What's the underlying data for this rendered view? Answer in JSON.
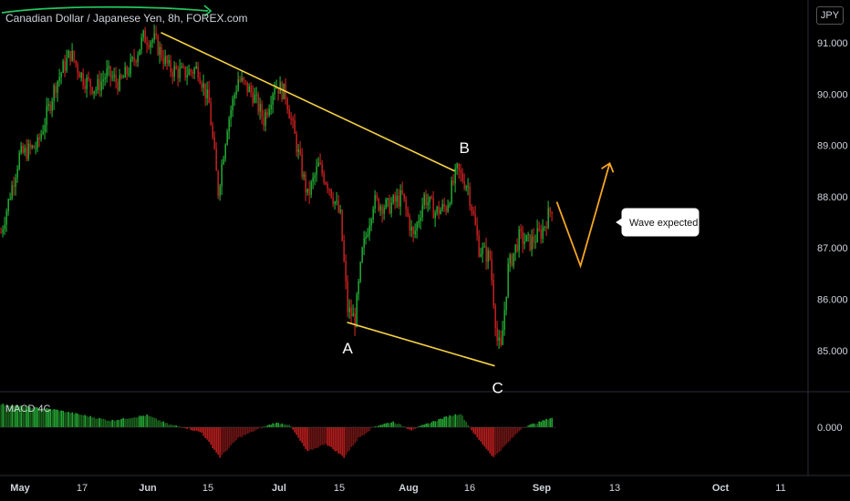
{
  "chart_data": {
    "type": "candlestick",
    "title": "Canadian Dollar / Japanese Yen, 8h, FOREX.com",
    "currency": "JPY",
    "price_axis": {
      "ticks": [
        "91.000",
        "90.000",
        "89.000",
        "88.000",
        "87.000",
        "86.000",
        "85.000"
      ],
      "values": [
        91,
        90,
        89,
        88,
        87,
        86,
        85
      ]
    },
    "time_axis": {
      "ticks": [
        "May",
        "17",
        "Jun",
        "15",
        "Jul",
        "15",
        "Aug",
        "16",
        "Sep",
        "13",
        "Oct",
        "11"
      ],
      "bold": [
        "May",
        "Jun",
        "Jul",
        "Aug",
        "Sep",
        "Oct"
      ]
    },
    "price_path": [
      {
        "i": 0,
        "v": 87.3
      },
      {
        "i": 10,
        "v": 88.8
      },
      {
        "i": 20,
        "v": 89.0
      },
      {
        "i": 30,
        "v": 90.2
      },
      {
        "i": 38,
        "v": 90.8
      },
      {
        "i": 45,
        "v": 90.3
      },
      {
        "i": 52,
        "v": 90.1
      },
      {
        "i": 58,
        "v": 90.4
      },
      {
        "i": 65,
        "v": 90.2
      },
      {
        "i": 72,
        "v": 90.6
      },
      {
        "i": 78,
        "v": 91.1
      },
      {
        "i": 84,
        "v": 91.05
      },
      {
        "i": 92,
        "v": 90.5
      },
      {
        "i": 100,
        "v": 90.4
      },
      {
        "i": 108,
        "v": 90.5
      },
      {
        "i": 114,
        "v": 89.8
      },
      {
        "i": 119,
        "v": 88.1
      },
      {
        "i": 124,
        "v": 89.4
      },
      {
        "i": 130,
        "v": 90.3
      },
      {
        "i": 138,
        "v": 90.0
      },
      {
        "i": 144,
        "v": 89.5
      },
      {
        "i": 150,
        "v": 90.2
      },
      {
        "i": 156,
        "v": 90.0
      },
      {
        "i": 162,
        "v": 89.0
      },
      {
        "i": 168,
        "v": 88.0
      },
      {
        "i": 174,
        "v": 88.6
      },
      {
        "i": 180,
        "v": 88.2
      },
      {
        "i": 186,
        "v": 87.6
      },
      {
        "i": 190,
        "v": 85.8
      },
      {
        "i": 194,
        "v": 85.6
      },
      {
        "i": 198,
        "v": 86.9
      },
      {
        "i": 204,
        "v": 87.9
      },
      {
        "i": 212,
        "v": 87.8
      },
      {
        "i": 220,
        "v": 88.0
      },
      {
        "i": 226,
        "v": 87.2
      },
      {
        "i": 232,
        "v": 88.0
      },
      {
        "i": 238,
        "v": 87.7
      },
      {
        "i": 244,
        "v": 87.8
      },
      {
        "i": 250,
        "v": 88.5
      },
      {
        "i": 256,
        "v": 88.2
      },
      {
        "i": 262,
        "v": 87.0
      },
      {
        "i": 268,
        "v": 86.8
      },
      {
        "i": 272,
        "v": 85.2
      },
      {
        "i": 274,
        "v": 85.0
      },
      {
        "i": 278,
        "v": 86.6
      },
      {
        "i": 284,
        "v": 87.2
      },
      {
        "i": 290,
        "v": 87.1
      },
      {
        "i": 296,
        "v": 87.3
      },
      {
        "i": 302,
        "v": 87.8
      }
    ],
    "annotations": {
      "wave_labels": [
        "A",
        "B",
        "C"
      ],
      "callout": "Wave expected",
      "lines": [
        {
          "from": {
            "i": 88,
            "v": 91.2
          },
          "to": {
            "i": 249,
            "v": 88.5
          }
        },
        {
          "from": {
            "i": 190,
            "v": 85.55
          },
          "to": {
            "i": 271,
            "v": 84.7
          }
        }
      ],
      "projection": [
        {
          "i": 305,
          "v": 87.9
        },
        {
          "i": 318,
          "v": 86.65
        },
        {
          "i": 334,
          "v": 88.65
        }
      ]
    },
    "indicator": {
      "name": "MACD 4C",
      "tick": "0.000",
      "histogram": [
        {
          "i": 0,
          "v": 0.42
        },
        {
          "i": 30,
          "v": 0.32
        },
        {
          "i": 60,
          "v": 0.12
        },
        {
          "i": 80,
          "v": 0.22
        },
        {
          "i": 92,
          "v": 0.05
        },
        {
          "i": 100,
          "v": 0.0
        },
        {
          "i": 110,
          "v": -0.1
        },
        {
          "i": 120,
          "v": -0.55
        },
        {
          "i": 130,
          "v": -0.2
        },
        {
          "i": 140,
          "v": -0.05
        },
        {
          "i": 150,
          "v": 0.08
        },
        {
          "i": 158,
          "v": 0.05
        },
        {
          "i": 168,
          "v": -0.45
        },
        {
          "i": 178,
          "v": -0.3
        },
        {
          "i": 188,
          "v": -0.55
        },
        {
          "i": 196,
          "v": -0.2
        },
        {
          "i": 205,
          "v": 0.02
        },
        {
          "i": 215,
          "v": 0.1
        },
        {
          "i": 225,
          "v": -0.05
        },
        {
          "i": 235,
          "v": 0.08
        },
        {
          "i": 245,
          "v": 0.2
        },
        {
          "i": 252,
          "v": 0.25
        },
        {
          "i": 260,
          "v": -0.15
        },
        {
          "i": 270,
          "v": -0.55
        },
        {
          "i": 276,
          "v": -0.35
        },
        {
          "i": 286,
          "v": 0.0
        },
        {
          "i": 294,
          "v": 0.08
        },
        {
          "i": 304,
          "v": 0.2
        }
      ]
    }
  }
}
